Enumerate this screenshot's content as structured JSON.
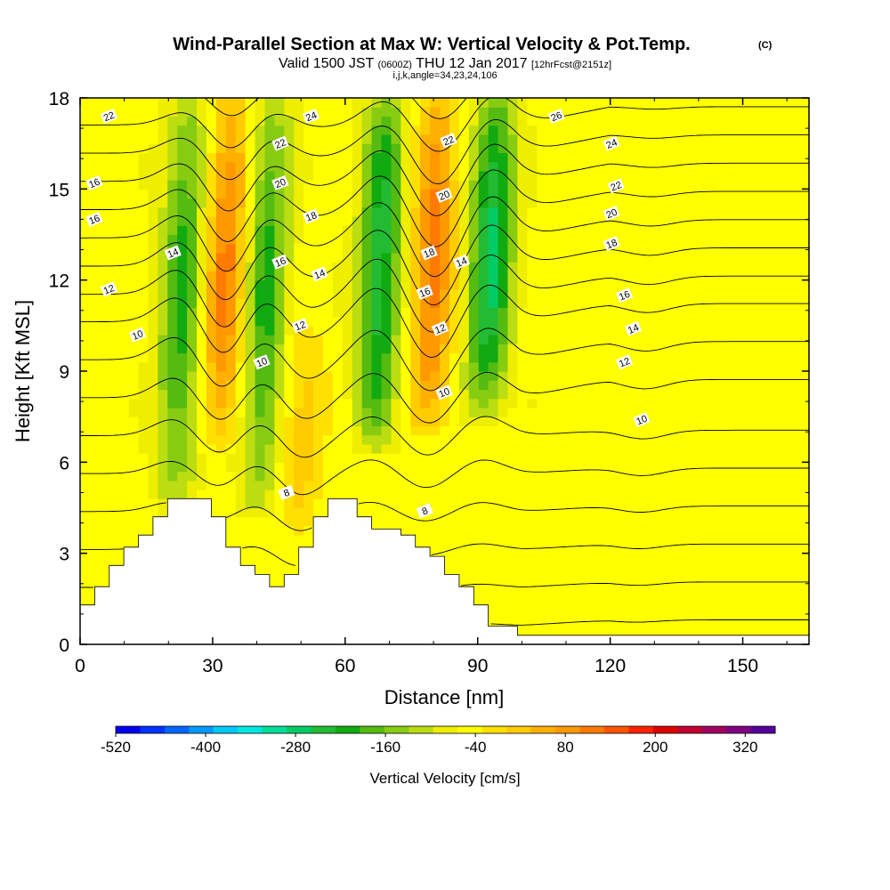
{
  "chart_data": {
    "type": "heatmap",
    "title": "Wind-Parallel Section at Max W: Vertical Velocity & Pot.Temp.",
    "title_units": "(C)",
    "subtitle": {
      "valid": "Valid 1500 JST",
      "utc": "(0600Z)",
      "date": "THU 12 Jan 2017",
      "forecast": "[12hrFcst@2151z]"
    },
    "section_info": "i,j,k,angle=34,23,24,106",
    "xlabel": "Distance [nm]",
    "ylabel": "Height [Kft MSL]",
    "xlim": [
      0,
      165
    ],
    "ylim": [
      0,
      18
    ],
    "xticks": [
      "0",
      "30",
      "60",
      "90",
      "120",
      "150"
    ],
    "yticks": [
      "0",
      "3",
      "6",
      "9",
      "12",
      "15",
      "18"
    ],
    "grid": false,
    "colorbar": {
      "label": "Vertical Velocity [cm/s]",
      "range": [
        -520,
        360
      ],
      "step": 40,
      "tick_labels": [
        "-520",
        "-400",
        "-280",
        "-160",
        "-40",
        "80",
        "200",
        "320"
      ],
      "colors": [
        "#0000ee",
        "#0033ff",
        "#0066ff",
        "#0099ff",
        "#00c8ff",
        "#00e8e0",
        "#00dd99",
        "#00cc66",
        "#22bb33",
        "#11aa11",
        "#55bb11",
        "#88cc11",
        "#bbdd11",
        "#eeee00",
        "#ffff00",
        "#ffe000",
        "#ffcc00",
        "#ffb000",
        "#ff9900",
        "#ff7a00",
        "#ff5500",
        "#ff2200",
        "#dd0000",
        "#c00030",
        "#a00060",
        "#800080",
        "#550099"
      ]
    },
    "vertical_velocity_field": {
      "units": "cm/s",
      "features": [
        {
          "kind": "updraft",
          "center_x": 33,
          "z_range": [
            7,
            18
          ],
          "peak": 240
        },
        {
          "kind": "updraft",
          "center_x": 50,
          "z_range": [
            4.5,
            10
          ],
          "peak": 130
        },
        {
          "kind": "updraft",
          "center_x": 80,
          "z_range": [
            7.5,
            18
          ],
          "peak": 240
        },
        {
          "kind": "downdraft",
          "center_x": 23,
          "z_range": [
            5,
            18
          ],
          "peak": -150
        },
        {
          "kind": "downdraft",
          "center_x": 42,
          "z_range": [
            5,
            18
          ],
          "peak": -150
        },
        {
          "kind": "downdraft",
          "center_x": 68,
          "z_range": [
            7,
            18
          ],
          "peak": -200
        },
        {
          "kind": "downdraft",
          "center_x": 93,
          "z_range": [
            8,
            18
          ],
          "peak": -230
        },
        {
          "kind": "weak updraft",
          "center_x": 128,
          "z_range": [
            0,
            18
          ],
          "peak": 50
        }
      ]
    },
    "potential_temperature_contours": {
      "units": "C",
      "interval": 1,
      "min_value": 4,
      "max_value": 26,
      "labels": [
        {
          "text": "22",
          "x": 6.5,
          "z": 17.4
        },
        {
          "text": "24",
          "x": 52.3,
          "z": 17.4
        },
        {
          "text": "26",
          "x": 107.8,
          "z": 17.4
        },
        {
          "text": "22",
          "x": 45.3,
          "z": 16.5
        },
        {
          "text": "22",
          "x": 83.4,
          "z": 16.6
        },
        {
          "text": "24",
          "x": 120.3,
          "z": 16.5
        },
        {
          "text": "16",
          "x": 3.2,
          "z": 15.2
        },
        {
          "text": "20",
          "x": 45.3,
          "z": 15.2
        },
        {
          "text": "20",
          "x": 82.4,
          "z": 14.8
        },
        {
          "text": "22",
          "x": 121.3,
          "z": 15.1
        },
        {
          "text": "16",
          "x": 3.2,
          "z": 14.0
        },
        {
          "text": "18",
          "x": 52.3,
          "z": 14.1
        },
        {
          "text": "20",
          "x": 120.3,
          "z": 14.2
        },
        {
          "text": "14",
          "x": 21.0,
          "z": 12.9
        },
        {
          "text": "16",
          "x": 45.3,
          "z": 12.6
        },
        {
          "text": "18",
          "x": 79.0,
          "z": 12.9
        },
        {
          "text": "18",
          "x": 120.3,
          "z": 13.2
        },
        {
          "text": "14",
          "x": 54.2,
          "z": 12.2
        },
        {
          "text": "14",
          "x": 86.3,
          "z": 12.6
        },
        {
          "text": "12",
          "x": 6.5,
          "z": 11.7
        },
        {
          "text": "16",
          "x": 78.0,
          "z": 11.6
        },
        {
          "text": "16",
          "x": 123.2,
          "z": 11.5
        },
        {
          "text": "12",
          "x": 49.8,
          "z": 10.5
        },
        {
          "text": "12",
          "x": 81.5,
          "z": 10.4
        },
        {
          "text": "10",
          "x": 13.0,
          "z": 10.2
        },
        {
          "text": "14",
          "x": 125.2,
          "z": 10.4
        },
        {
          "text": "10",
          "x": 41.1,
          "z": 9.3
        },
        {
          "text": "12",
          "x": 123.2,
          "z": 9.3
        },
        {
          "text": "10",
          "x": 82.4,
          "z": 8.3
        },
        {
          "text": "10",
          "x": 127.1,
          "z": 7.4
        },
        {
          "text": "8",
          "x": 46.7,
          "z": 5.0
        },
        {
          "text": "8",
          "x": 78.0,
          "z": 4.4
        }
      ]
    },
    "terrain_height_kft": {
      "x_step": 3.3,
      "values": [
        1.3,
        1.9,
        2.6,
        3.2,
        3.6,
        4.2,
        4.8,
        4.8,
        4.8,
        4.2,
        3.2,
        2.6,
        2.3,
        1.9,
        2.3,
        3.2,
        4.2,
        4.8,
        4.8,
        4.2,
        3.8,
        3.8,
        3.6,
        3.2,
        2.9,
        2.3,
        1.9,
        1.3,
        0.6,
        0.6,
        0.3,
        0.3,
        0.3,
        0.3,
        0.3,
        0.3,
        0.3,
        0.3,
        0.3,
        0.3,
        0.3,
        0.3,
        0.3,
        0.3,
        0.3,
        0.3,
        0.3,
        0.3,
        0.3,
        0.3
      ]
    }
  }
}
